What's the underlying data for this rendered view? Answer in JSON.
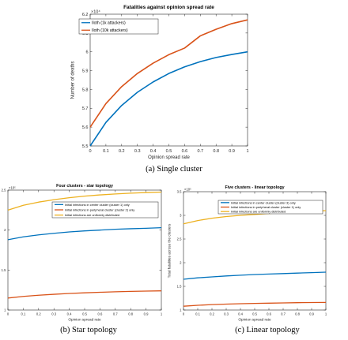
{
  "captions": {
    "a": "(a) Single cluster",
    "b": "(b) Star topology",
    "c": "(c) Linear topology"
  },
  "chart_data": [
    {
      "id": "a",
      "type": "line",
      "title": "Fatalities against opinion spread rate",
      "xlabel": "Opinion spread rate",
      "ylabel": "Number of deaths",
      "exponent": "×10⁴",
      "xlim": [
        0,
        1
      ],
      "ylim": [
        5.5,
        6.2
      ],
      "xticks": [
        "0",
        "0.1",
        "0.2",
        "0.3",
        "0.4",
        "0.5",
        "0.6",
        "0.7",
        "0.8",
        "0.9",
        "1"
      ],
      "yticks": [
        "5.5",
        "5.6",
        "5.7",
        "5.8",
        "5.9",
        "6",
        "6.1",
        "6.2"
      ],
      "grid": false,
      "legend_position": "top-right",
      "x": [
        0,
        0.1,
        0.2,
        0.3,
        0.4,
        0.5,
        0.6,
        0.7,
        0.8,
        0.9,
        1
      ],
      "series": [
        {
          "name": "Iloth (1k attackers)",
          "color": "#0072bd",
          "values": [
            5.5,
            5.625,
            5.715,
            5.785,
            5.84,
            5.885,
            5.92,
            5.948,
            5.97,
            5.986,
            6.0
          ]
        },
        {
          "name": "Iloth (10k attackers)",
          "color": "#d95319",
          "values": [
            5.6,
            5.725,
            5.815,
            5.885,
            5.94,
            5.985,
            6.02,
            6.085,
            6.12,
            6.15,
            6.17
          ]
        }
      ]
    },
    {
      "id": "b",
      "type": "line",
      "title": "Four clusters - star topology",
      "xlabel": "Opinion spread rate",
      "ylabel": "Total fatalities across clusters",
      "exponent": "×10⁵",
      "xlim": [
        0,
        1
      ],
      "ylim": [
        1.0,
        2.5
      ],
      "xticks": [
        "0",
        "0.1",
        "0.2",
        "0.3",
        "0.4",
        "0.5",
        "0.6",
        "0.7",
        "0.8",
        "0.9",
        "1"
      ],
      "yticks": [
        "1",
        "1.5",
        "2",
        "2.5"
      ],
      "grid": false,
      "legend_position": "top-right",
      "x": [
        0,
        0.1,
        0.2,
        0.3,
        0.4,
        0.5,
        0.6,
        0.7,
        0.8,
        0.9,
        1
      ],
      "series": [
        {
          "name": "Initial infections in center cluster (cluster 1) only",
          "color": "#0072bd",
          "values": [
            1.88,
            1.915,
            1.94,
            1.96,
            1.977,
            1.99,
            2.0,
            2.01,
            2.017,
            2.023,
            2.03
          ]
        },
        {
          "name": "Initial infections in peripheral cluster (cluster 2) only",
          "color": "#d95319",
          "values": [
            1.15,
            1.17,
            1.185,
            1.197,
            1.207,
            1.215,
            1.222,
            1.228,
            1.233,
            1.237,
            1.24
          ]
        },
        {
          "name": "Initial infections are uniformly distributed",
          "color": "#edb120",
          "values": [
            2.25,
            2.31,
            2.35,
            2.38,
            2.405,
            2.425,
            2.44,
            2.452,
            2.462,
            2.47,
            2.475
          ]
        }
      ]
    },
    {
      "id": "c",
      "type": "line",
      "title": "Five clusters - linear topology",
      "xlabel": "Opinion spread rate",
      "ylabel": "Total fatalities across the clusters",
      "exponent": "×10⁵",
      "xlim": [
        0,
        1
      ],
      "ylim": [
        1.0,
        3.5
      ],
      "xticks": [
        "0",
        "0.1",
        "0.2",
        "0.3",
        "0.4",
        "0.5",
        "0.6",
        "0.7",
        "0.8",
        "0.9",
        "1"
      ],
      "yticks": [
        "1",
        "1.5",
        "2",
        "2.5",
        "3",
        "3.5"
      ],
      "grid": false,
      "legend_position": "top-right",
      "x": [
        0,
        0.1,
        0.2,
        0.3,
        0.4,
        0.5,
        0.6,
        0.7,
        0.8,
        0.9,
        1
      ],
      "series": [
        {
          "name": "Initial infections in center cluster (cluster 3) only",
          "color": "#0072bd",
          "values": [
            1.65,
            1.68,
            1.7,
            1.72,
            1.735,
            1.75,
            1.76,
            1.77,
            1.78,
            1.79,
            1.8
          ]
        },
        {
          "name": "Initial infections in peripheral cluster (cluster 1) only",
          "color": "#d95319",
          "values": [
            1.08,
            1.1,
            1.115,
            1.125,
            1.133,
            1.14,
            1.145,
            1.15,
            1.155,
            1.158,
            1.16
          ]
        },
        {
          "name": "Initial infections are uniformly distributed",
          "color": "#edb120",
          "values": [
            2.82,
            2.89,
            2.94,
            2.975,
            3.0,
            3.02,
            3.04,
            3.055,
            3.07,
            3.085,
            3.1
          ]
        }
      ]
    }
  ]
}
